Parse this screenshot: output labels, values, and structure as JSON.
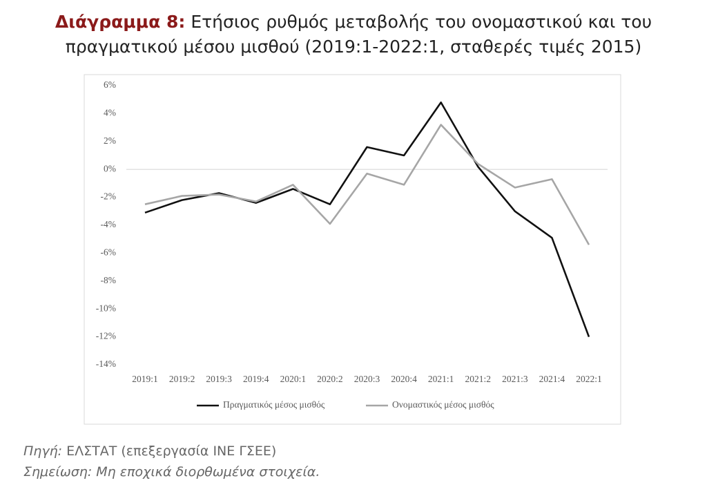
{
  "chart_data": {
    "type": "line",
    "title_prefix": "Διάγραμμα 8:",
    "title": "Ετήσιος ρυθμός μεταβολής του ονομαστικού και του πραγματικού μέσου μισθού (2019:1-2022:1, σταθερές τιμές 2015)",
    "categories": [
      "2019:1",
      "2019:2",
      "2019:3",
      "2019:4",
      "2020:1",
      "2020:2",
      "2020:3",
      "2020:4",
      "2021:1",
      "2021:2",
      "2021:3",
      "2021:4",
      "2022:1"
    ],
    "series": [
      {
        "name": "Πραγματικός μέσος μισθός",
        "color": "#111111",
        "values": [
          -3.1,
          -2.2,
          -1.7,
          -2.4,
          -1.4,
          -2.5,
          1.6,
          1.0,
          4.8,
          0.2,
          -3.0,
          -4.9,
          -12.0
        ]
      },
      {
        "name": "Ονομαστικός μέσος μισθός",
        "color": "#a6a6a6",
        "values": [
          -2.5,
          -1.9,
          -1.8,
          -2.3,
          -1.1,
          -3.9,
          -0.3,
          -1.1,
          3.2,
          0.4,
          -1.3,
          -0.7,
          -5.4
        ]
      }
    ],
    "ylim": [
      -14,
      6
    ],
    "yticks": [
      {
        "value": 6,
        "label": "6%"
      },
      {
        "value": 4,
        "label": "4%"
      },
      {
        "value": 2,
        "label": "2%"
      },
      {
        "value": 0,
        "label": "0%"
      },
      {
        "value": -2,
        "label": "-2%"
      },
      {
        "value": -4,
        "label": "-4%"
      },
      {
        "value": -6,
        "label": "-6%"
      },
      {
        "value": -8,
        "label": "-8%"
      },
      {
        "value": -10,
        "label": "-10%"
      },
      {
        "value": -12,
        "label": "-12%"
      },
      {
        "value": -14,
        "label": "-14%"
      }
    ],
    "legend": "bottom",
    "source_label": "Πηγή:",
    "source": "ΕΛΣΤΑΤ (επεξεργασία ΙΝΕ ΓΣΕΕ)",
    "note": "Σημείωση: Μη εποχικά διορθωμένα στοιχεία."
  }
}
